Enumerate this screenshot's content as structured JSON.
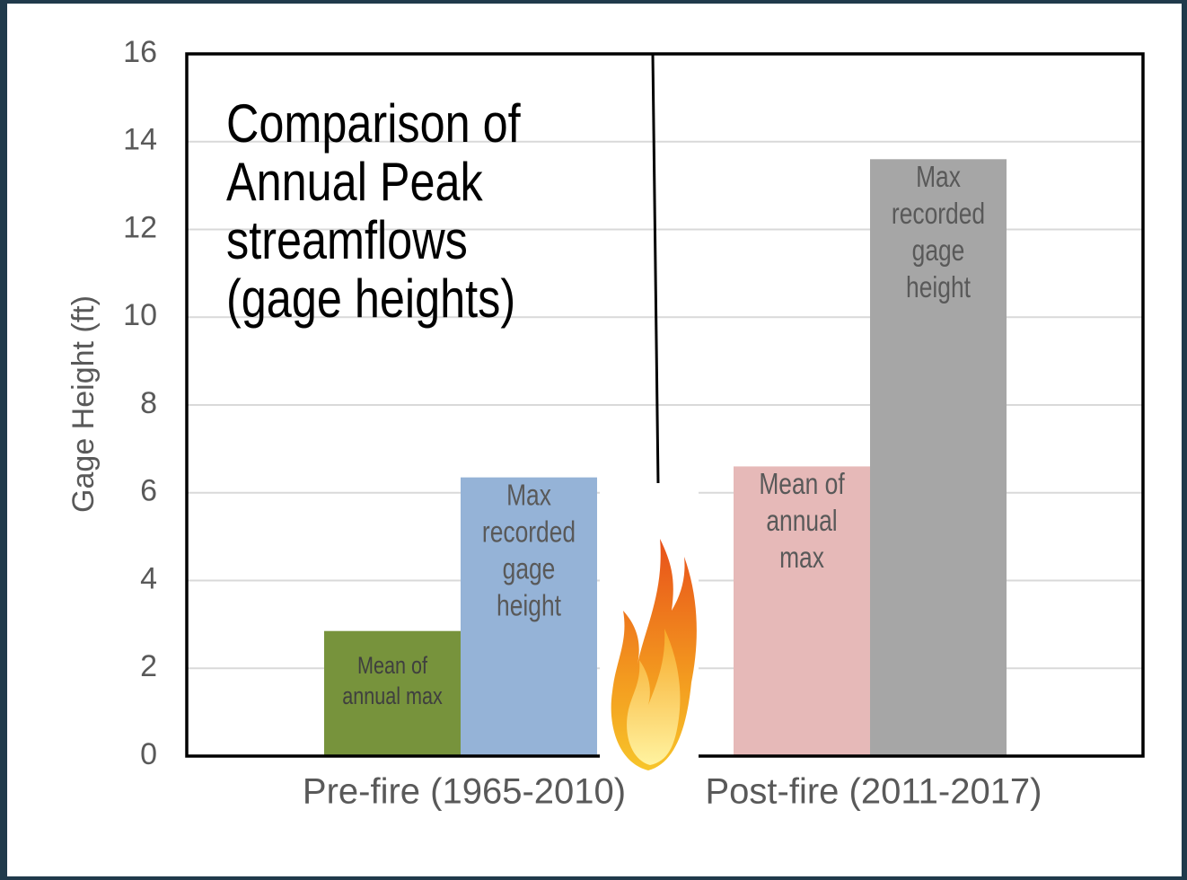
{
  "chart_data": {
    "type": "bar",
    "title": [
      "Comparison of",
      "Annual Peak",
      "streamflows",
      "(gage heights)"
    ],
    "y_label": "Gage Height (ft)",
    "ylim": [
      0,
      16
    ],
    "yticks": [
      0,
      2,
      4,
      6,
      8,
      10,
      12,
      14,
      16
    ],
    "grid": true,
    "groups": [
      {
        "category": "Pre-fire (1965-2010)",
        "bars": [
          {
            "label": [
              "Mean of",
              "annual max"
            ],
            "color": "#77933c",
            "value": 2.85
          },
          {
            "label": [
              "Max",
              "recorded",
              "gage",
              "height"
            ],
            "color": "#95b3d7",
            "value": 6.35
          }
        ]
      },
      {
        "category": "Post-fire (2011-2017)",
        "bars": [
          {
            "label": [
              "Mean of",
              "annual",
              "max"
            ],
            "color": "#e6b9b8",
            "value": 6.6
          },
          {
            "label": [
              "Max",
              "recorded",
              "gage",
              "height"
            ],
            "color": "#a6a6a6",
            "value": 13.6
          }
        ]
      }
    ]
  }
}
